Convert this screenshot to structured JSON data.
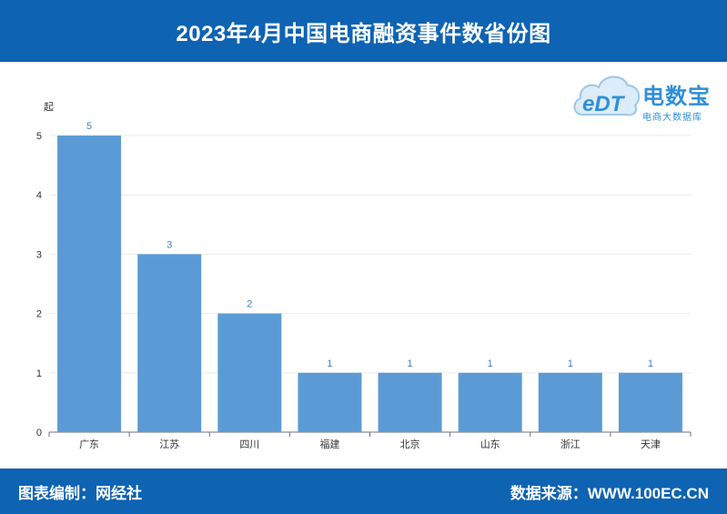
{
  "header": {
    "title": "2023年4月中国电商融资事件数省份图"
  },
  "footer": {
    "editor": "图表编制：网经社",
    "source": "数据来源：WWW.100EC.CN"
  },
  "logo": {
    "mark": "eDT",
    "name": "电数宝",
    "tagline": "电商大数据库"
  },
  "colors": {
    "bar": "#5b9bd5",
    "header": "#0e63b3",
    "data_label": "#3b7fc4"
  },
  "chart_data": {
    "type": "bar",
    "title": "2023年4月中国电商融资事件数省份图",
    "ylabel": "起",
    "xlabel": "",
    "categories": [
      "广东",
      "江苏",
      "四川",
      "福建",
      "北京",
      "山东",
      "浙江",
      "天津"
    ],
    "values": [
      5,
      3,
      2,
      1,
      1,
      1,
      1,
      1
    ],
    "ylim": [
      0,
      5
    ],
    "yticks": [
      0,
      1,
      2,
      3,
      4,
      5
    ],
    "grid": true,
    "legend": "none"
  }
}
